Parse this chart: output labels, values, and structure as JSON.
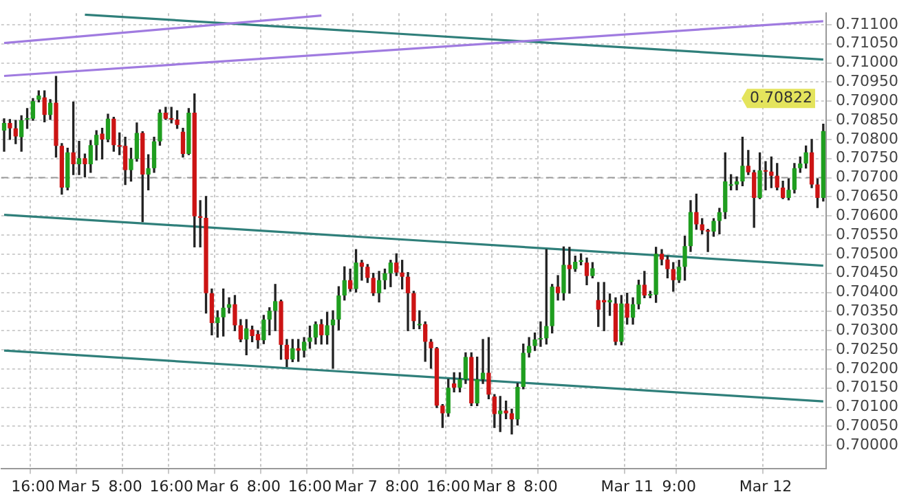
{
  "chart_data": {
    "type": "candlestick",
    "categories": [
      null,
      null,
      null,
      null,
      null,
      "16:00",
      null,
      null,
      null,
      null,
      null,
      null,
      null,
      "Mar 5",
      null,
      null,
      null,
      null,
      null,
      null,
      null,
      "8:00",
      null,
      null,
      null,
      null,
      null,
      null,
      null,
      "16:00",
      null,
      null,
      null,
      null,
      null,
      null,
      null,
      "Mar 6",
      null,
      null,
      null,
      null,
      null,
      null,
      null,
      "8:00",
      null,
      null,
      null,
      null,
      null,
      null,
      null,
      "16:00",
      null,
      null,
      null,
      null,
      null,
      null,
      null,
      "Mar 7",
      null,
      null,
      null,
      null,
      null,
      null,
      null,
      "8:00",
      null,
      null,
      null,
      null,
      null,
      null,
      null,
      "16:00",
      null,
      null,
      null,
      null,
      null,
      null,
      null,
      "Mar 8",
      null,
      null,
      null,
      null,
      null,
      null,
      null,
      "8:00",
      null,
      null,
      null,
      null,
      null,
      null,
      null,
      null,
      null,
      null,
      null,
      null,
      null,
      null,
      "Mar 11",
      null,
      null,
      null,
      null,
      null,
      null,
      null,
      null,
      "9:00",
      null,
      null,
      null,
      null,
      null,
      null,
      null,
      null,
      null,
      null,
      null,
      null,
      null,
      null,
      "Mar 12",
      null,
      null,
      null,
      null,
      null,
      null,
      null,
      null,
      null,
      null
    ],
    "ohlc": [
      [
        0.70823,
        0.70854,
        0.70769,
        0.70843
      ],
      [
        0.70843,
        0.70852,
        0.708,
        0.70829
      ],
      [
        0.70829,
        0.7085,
        0.70789,
        0.70808
      ],
      [
        0.70806,
        0.70862,
        0.70769,
        0.7085
      ],
      [
        0.70852,
        0.70881,
        0.70829,
        0.70854
      ],
      [
        0.70854,
        0.70907,
        0.7085,
        0.709
      ],
      [
        0.70904,
        0.70927,
        0.70898,
        0.70915
      ],
      [
        0.7091,
        0.70927,
        0.70846,
        0.70864
      ],
      [
        0.70864,
        0.70904,
        0.70852,
        0.70896
      ],
      [
        0.70896,
        0.70965,
        0.70754,
        0.70783
      ],
      [
        0.70783,
        0.70789,
        0.70657,
        0.70674
      ],
      [
        0.70674,
        0.70777,
        0.70668,
        0.70766
      ],
      [
        0.70766,
        0.70898,
        0.70708,
        0.70735
      ],
      [
        0.70735,
        0.70795,
        0.70708,
        0.70751
      ],
      [
        0.70751,
        0.70762,
        0.70702,
        0.70735
      ],
      [
        0.70735,
        0.70797,
        0.70714,
        0.70785
      ],
      [
        0.70785,
        0.70823,
        0.70746,
        0.70812
      ],
      [
        0.70815,
        0.70829,
        0.70749,
        0.708
      ],
      [
        0.708,
        0.70866,
        0.70794,
        0.70854
      ],
      [
        0.70854,
        0.70858,
        0.70769,
        0.70785
      ],
      [
        0.70785,
        0.70817,
        0.7076,
        0.70781
      ],
      [
        0.70783,
        0.70806,
        0.70682,
        0.7072
      ],
      [
        0.7072,
        0.70777,
        0.70691,
        0.70749
      ],
      [
        0.70749,
        0.70843,
        0.70743,
        0.70817
      ],
      [
        0.70817,
        0.7082,
        0.70585,
        0.70708
      ],
      [
        0.70708,
        0.7076,
        0.70668,
        0.70725
      ],
      [
        0.70725,
        0.70806,
        0.70714,
        0.70795
      ],
      [
        0.70795,
        0.70877,
        0.70785,
        0.7087
      ],
      [
        0.7087,
        0.70884,
        0.70852,
        0.70854
      ],
      [
        0.70854,
        0.70884,
        0.70843,
        0.70852
      ],
      [
        0.70852,
        0.70875,
        0.70829,
        0.70838
      ],
      [
        0.7082,
        0.70829,
        0.70754,
        0.70762
      ],
      [
        0.70762,
        0.70881,
        0.7076,
        0.7087
      ],
      [
        0.7087,
        0.70919,
        0.70519,
        0.70599
      ],
      [
        0.70599,
        0.7064,
        0.70519,
        0.70595
      ],
      [
        0.70595,
        0.70651,
        0.70346,
        0.70398
      ],
      [
        0.70398,
        0.70409,
        0.70289,
        0.7032
      ],
      [
        0.7032,
        0.70352,
        0.70283,
        0.70335
      ],
      [
        0.70335,
        0.70409,
        0.70286,
        0.7036
      ],
      [
        0.7036,
        0.70386,
        0.70346,
        0.70369
      ],
      [
        0.70369,
        0.70392,
        0.703,
        0.70314
      ],
      [
        0.70314,
        0.70329,
        0.70271,
        0.70277
      ],
      [
        0.70277,
        0.70329,
        0.70237,
        0.70306
      ],
      [
        0.70303,
        0.70312,
        0.70271,
        0.70286
      ],
      [
        0.70291,
        0.703,
        0.70254,
        0.70275
      ],
      [
        0.70275,
        0.7034,
        0.70266,
        0.70329
      ],
      [
        0.70329,
        0.7036,
        0.70289,
        0.70352
      ],
      [
        0.70352,
        0.70421,
        0.703,
        0.70377
      ],
      [
        0.70377,
        0.7038,
        0.70225,
        0.70263
      ],
      [
        0.70263,
        0.70277,
        0.70206,
        0.70225
      ],
      [
        0.70225,
        0.70277,
        0.70219,
        0.70254
      ],
      [
        0.70254,
        0.70277,
        0.7022,
        0.70248
      ],
      [
        0.70248,
        0.70282,
        0.70231,
        0.70271
      ],
      [
        0.70271,
        0.70312,
        0.70254,
        0.70282
      ],
      [
        0.70282,
        0.70323,
        0.70265,
        0.70317
      ],
      [
        0.70317,
        0.70329,
        0.70265,
        0.70288
      ],
      [
        0.70288,
        0.70348,
        0.70265,
        0.70314
      ],
      [
        0.70314,
        0.70352,
        0.70202,
        0.70329
      ],
      [
        0.70329,
        0.70415,
        0.70302,
        0.70392
      ],
      [
        0.70392,
        0.70467,
        0.7038,
        0.70432
      ],
      [
        0.70432,
        0.70461,
        0.70403,
        0.70409
      ],
      [
        0.70409,
        0.70512,
        0.70401,
        0.70478
      ],
      [
        0.70478,
        0.70484,
        0.70432,
        0.70467
      ],
      [
        0.70467,
        0.70473,
        0.70426,
        0.70438
      ],
      [
        0.70438,
        0.7045,
        0.70392,
        0.70398
      ],
      [
        0.70398,
        0.70455,
        0.70375,
        0.70432
      ],
      [
        0.70432,
        0.70461,
        0.70409,
        0.7045
      ],
      [
        0.7045,
        0.70484,
        0.70415,
        0.70478
      ],
      [
        0.70478,
        0.70501,
        0.70444,
        0.70452
      ],
      [
        0.70452,
        0.70484,
        0.70409,
        0.70441
      ],
      [
        0.70441,
        0.70452,
        0.703,
        0.70398
      ],
      [
        0.70398,
        0.70403,
        0.70305,
        0.70325
      ],
      [
        0.70314,
        0.70352,
        0.70305,
        0.70317
      ],
      [
        0.70317,
        0.70323,
        0.7022,
        0.70271
      ],
      [
        0.70271,
        0.70277,
        0.70202,
        0.70254
      ],
      [
        0.70254,
        0.70256,
        0.70099,
        0.70104
      ],
      [
        0.70104,
        0.70107,
        0.70047,
        0.70084
      ],
      [
        0.70084,
        0.70173,
        0.70076,
        0.70151
      ],
      [
        0.70162,
        0.7019,
        0.7014,
        0.70151
      ],
      [
        0.70151,
        0.7019,
        0.7014,
        0.70173
      ],
      [
        0.70173,
        0.70242,
        0.70162,
        0.70231
      ],
      [
        0.70231,
        0.70242,
        0.70104,
        0.7011
      ],
      [
        0.7011,
        0.70231,
        0.70104,
        0.70173
      ],
      [
        0.70173,
        0.70277,
        0.70162,
        0.7019
      ],
      [
        0.7019,
        0.70282,
        0.70122,
        0.70133
      ],
      [
        0.70128,
        0.70133,
        0.70047,
        0.70082
      ],
      [
        0.70082,
        0.70128,
        0.70036,
        0.70091
      ],
      [
        0.70091,
        0.70116,
        0.7007,
        0.70084
      ],
      [
        0.70084,
        0.70095,
        0.7003,
        0.70068
      ],
      [
        0.70068,
        0.70162,
        0.70053,
        0.70153
      ],
      [
        0.70153,
        0.70265,
        0.70148,
        0.70242
      ],
      [
        0.70242,
        0.70282,
        0.70231,
        0.7026
      ],
      [
        0.7026,
        0.70294,
        0.70248,
        0.70277
      ],
      [
        0.70277,
        0.70323,
        0.70259,
        0.7028
      ],
      [
        0.7028,
        0.70512,
        0.70265,
        0.70312
      ],
      [
        0.70312,
        0.70421,
        0.70294,
        0.70415
      ],
      [
        0.70415,
        0.70444,
        0.7038,
        0.70398
      ],
      [
        0.70398,
        0.70519,
        0.7038,
        0.70472
      ],
      [
        0.70472,
        0.70518,
        0.70398,
        0.70461
      ],
      [
        0.70461,
        0.70495,
        0.70455,
        0.7048
      ],
      [
        0.7048,
        0.70501,
        0.70472,
        0.70484
      ],
      [
        0.70478,
        0.7049,
        0.7042,
        0.70443
      ],
      [
        0.70443,
        0.70478,
        0.70438,
        0.70463
      ],
      [
        0.7038,
        0.70426,
        0.70311,
        0.70355
      ],
      [
        0.7038,
        0.70426,
        0.703,
        0.70374
      ],
      [
        0.70374,
        0.70396,
        0.7034,
        0.7038
      ],
      [
        0.70371,
        0.70386,
        0.70263,
        0.70271
      ],
      [
        0.70271,
        0.70392,
        0.70263,
        0.70371
      ],
      [
        0.70371,
        0.70398,
        0.70317,
        0.70334
      ],
      [
        0.70334,
        0.70386,
        0.70317,
        0.70369
      ],
      [
        0.70369,
        0.70432,
        0.70357,
        0.7042
      ],
      [
        0.7042,
        0.70455,
        0.70386,
        0.70392
      ],
      [
        0.70392,
        0.70403,
        0.70386,
        0.70394
      ],
      [
        0.70394,
        0.70518,
        0.70374,
        0.70501
      ],
      [
        0.70501,
        0.70512,
        0.70472,
        0.70486
      ],
      [
        0.70486,
        0.70495,
        0.70438,
        0.70461
      ],
      [
        0.70461,
        0.70478,
        0.70403,
        0.70432
      ],
      [
        0.70432,
        0.70484,
        0.70426,
        0.70467
      ],
      [
        0.70467,
        0.70547,
        0.70432,
        0.70521
      ],
      [
        0.70521,
        0.7064,
        0.70507,
        0.7061
      ],
      [
        0.7061,
        0.70657,
        0.70565,
        0.70578
      ],
      [
        0.70578,
        0.70593,
        0.70553,
        0.70562
      ],
      [
        0.70562,
        0.70565,
        0.70507,
        0.70559
      ],
      [
        0.70559,
        0.70593,
        0.70547,
        0.70587
      ],
      [
        0.70587,
        0.7062,
        0.70553,
        0.7061
      ],
      [
        0.7061,
        0.70765,
        0.70593,
        0.7069
      ],
      [
        0.70679,
        0.70708,
        0.70668,
        0.70682
      ],
      [
        0.70682,
        0.70702,
        0.70668,
        0.7069
      ],
      [
        0.7069,
        0.70806,
        0.70679,
        0.70731
      ],
      [
        0.70731,
        0.70771,
        0.70708,
        0.70714
      ],
      [
        0.70714,
        0.70719,
        0.7057,
        0.70647
      ],
      [
        0.70647,
        0.70765,
        0.70645,
        0.70719
      ],
      [
        0.70719,
        0.70742,
        0.70668,
        0.70716
      ],
      [
        0.70716,
        0.70754,
        0.70674,
        0.70705
      ],
      [
        0.70705,
        0.70737,
        0.70668,
        0.70674
      ],
      [
        0.70674,
        0.70691,
        0.70645,
        0.70647
      ],
      [
        0.70647,
        0.70697,
        0.70642,
        0.70668
      ],
      [
        0.70668,
        0.70737,
        0.7066,
        0.70725
      ],
      [
        0.70725,
        0.70754,
        0.70714,
        0.70737
      ],
      [
        0.70737,
        0.70783,
        0.70725,
        0.70766
      ],
      [
        0.70766,
        0.708,
        0.70674,
        0.70682
      ],
      [
        0.70682,
        0.70697,
        0.70622,
        0.70647
      ],
      [
        0.70647,
        0.7084,
        0.70639,
        0.70822
      ]
    ],
    "colors": [
      "#1f9e1f",
      "#cc1414",
      "#cc1414",
      "#1f9e1f",
      "#1f9e1f",
      "#1f9e1f",
      "#1f9e1f",
      "#cc1414",
      "#1f9e1f",
      "#cc1414",
      "#cc1414",
      "#1f9e1f",
      "#cc1414",
      "#1f9e1f",
      "#cc1414",
      "#1f9e1f",
      "#1f9e1f",
      "#cc1414",
      "#1f9e1f",
      "#cc1414",
      "#cc1414",
      "#cc1414",
      "#1f9e1f",
      "#1f9e1f",
      "#cc1414",
      "#1f9e1f",
      "#1f9e1f",
      "#1f9e1f",
      "#cc1414",
      "#cc1414",
      "#cc1414",
      "#cc1414",
      "#1f9e1f",
      "#cc1414",
      "#cc1414",
      "#cc1414",
      "#cc1414",
      "#1f9e1f",
      "#1f9e1f",
      "#1f9e1f",
      "#cc1414",
      "#cc1414",
      "#1f9e1f",
      "#cc1414",
      "#cc1414",
      "#1f9e1f",
      "#1f9e1f",
      "#1f9e1f",
      "#cc1414",
      "#cc1414",
      "#1f9e1f",
      "#cc1414",
      "#1f9e1f",
      "#1f9e1f",
      "#1f9e1f",
      "#cc1414",
      "#1f9e1f",
      "#1f9e1f",
      "#1f9e1f",
      "#1f9e1f",
      "#cc1414",
      "#1f9e1f",
      "#cc1414",
      "#cc1414",
      "#cc1414",
      "#1f9e1f",
      "#1f9e1f",
      "#1f9e1f",
      "#cc1414",
      "#cc1414",
      "#cc1414",
      "#cc1414",
      "#1f9e1f",
      "#cc1414",
      "#cc1414",
      "#cc1414",
      "#cc1414",
      "#1f9e1f",
      "#cc1414",
      "#1f9e1f",
      "#1f9e1f",
      "#cc1414",
      "#1f9e1f",
      "#1f9e1f",
      "#cc1414",
      "#cc1414",
      "#1f9e1f",
      "#cc1414",
      "#cc1414",
      "#1f9e1f",
      "#1f9e1f",
      "#1f9e1f",
      "#1f9e1f",
      "#1f9e1f",
      "#1f9e1f",
      "#1f9e1f",
      "#cc1414",
      "#1f9e1f",
      "#cc1414",
      "#1f9e1f",
      "#1f9e1f",
      "#cc1414",
      "#1f9e1f",
      "#cc1414",
      "#cc1414",
      "#1f9e1f",
      "#cc1414",
      "#1f9e1f",
      "#cc1414",
      "#1f9e1f",
      "#1f9e1f",
      "#cc1414",
      "#1f9e1f",
      "#1f9e1f",
      "#cc1414",
      "#cc1414",
      "#cc1414",
      "#1f9e1f",
      "#1f9e1f",
      "#1f9e1f",
      "#cc1414",
      "#cc1414",
      "#cc1414",
      "#1f9e1f",
      "#1f9e1f",
      "#1f9e1f",
      "#1f9e1f",
      "#1f9e1f",
      "#1f9e1f",
      "#cc1414",
      "#cc1414",
      "#1f9e1f",
      "#cc1414",
      "#cc1414",
      "#cc1414",
      "#cc1414",
      "#1f9e1f",
      "#1f9e1f",
      "#1f9e1f",
      "#1f9e1f",
      "#cc1414",
      "#cc1414",
      "#1f9e1f"
    ],
    "series": [
      {
        "type": "line",
        "color": "#a07be0",
        "values": [
          0.70966,
          null,
          null,
          null,
          null,
          null,
          null,
          null,
          null,
          null,
          null,
          null,
          null,
          null,
          null,
          null,
          null,
          null,
          null,
          null,
          null,
          null,
          null,
          null,
          null,
          null,
          null,
          null,
          null,
          null,
          null,
          null,
          null,
          null,
          null,
          null,
          null,
          null,
          null,
          null,
          null,
          null,
          null,
          null,
          null,
          null,
          null,
          null,
          null,
          null,
          null,
          null,
          null,
          null,
          null,
          null,
          null,
          null,
          null,
          null,
          null,
          null,
          null,
          null,
          null,
          null,
          null,
          null,
          null,
          null,
          null,
          null,
          null,
          null,
          null,
          null,
          null,
          null,
          null,
          null,
          null,
          null,
          null,
          null,
          null,
          null,
          null,
          null,
          null,
          null,
          null,
          null,
          null,
          null,
          null,
          null,
          null,
          null,
          null,
          null,
          null,
          null,
          null,
          null,
          null,
          null,
          null,
          null,
          null,
          null,
          null,
          null,
          null,
          null,
          null,
          null,
          null,
          null,
          null,
          null,
          null,
          null,
          null,
          null,
          null,
          null,
          null,
          null,
          null,
          null,
          null,
          null,
          null,
          null,
          null,
          null,
          null,
          null,
          null,
          null,
          null,
          null,
          0.71109
        ]
      },
      {
        "type": "line",
        "color": "#a07be0",
        "values": [
          0.71052,
          null,
          null,
          null,
          null,
          null,
          null,
          null,
          null,
          null,
          null,
          null,
          null,
          null,
          null,
          null,
          null,
          null,
          null,
          null,
          null,
          null,
          null,
          null,
          null,
          null,
          null,
          null,
          null,
          null,
          null,
          null,
          null,
          null,
          null,
          null,
          null,
          null,
          null,
          null,
          null,
          null,
          null,
          null,
          null,
          null,
          null,
          null,
          null,
          null,
          null,
          null,
          null,
          null,
          null,
          0.71124,
          null,
          null,
          null,
          null,
          null,
          null,
          null,
          null,
          null,
          null,
          null,
          null,
          null,
          null,
          null,
          null,
          null,
          null,
          null,
          null,
          null,
          null,
          null,
          null,
          null,
          null,
          null,
          null,
          null,
          null,
          null,
          null,
          null,
          null,
          null,
          null,
          null,
          null,
          null,
          null,
          null,
          null,
          null,
          null,
          null,
          null,
          null,
          null,
          null,
          null,
          null,
          null,
          null,
          null,
          null,
          null,
          null,
          null,
          null,
          null,
          null,
          null,
          null,
          null,
          null,
          null,
          null,
          null,
          null,
          null,
          null,
          null,
          null,
          null,
          null,
          null,
          null,
          null,
          null,
          null,
          null,
          null,
          null,
          null,
          null,
          null,
          null
        ]
      },
      {
        "type": "line",
        "color": "#2f7f7a",
        "values": [
          null,
          null,
          null,
          null,
          null,
          null,
          null,
          null,
          null,
          null,
          null,
          null,
          null,
          null,
          0.71126,
          null,
          null,
          null,
          null,
          null,
          null,
          null,
          null,
          null,
          null,
          null,
          null,
          null,
          null,
          null,
          null,
          null,
          null,
          null,
          null,
          null,
          null,
          null,
          null,
          null,
          null,
          null,
          null,
          null,
          null,
          null,
          null,
          null,
          null,
          null,
          null,
          null,
          null,
          null,
          null,
          null,
          null,
          null,
          null,
          null,
          null,
          null,
          null,
          null,
          null,
          null,
          null,
          null,
          null,
          null,
          null,
          null,
          null,
          null,
          null,
          null,
          null,
          null,
          null,
          null,
          null,
          null,
          null,
          null,
          null,
          null,
          null,
          null,
          null,
          null,
          null,
          null,
          null,
          null,
          null,
          null,
          null,
          null,
          null,
          null,
          null,
          null,
          null,
          null,
          null,
          null,
          null,
          null,
          null,
          null,
          null,
          null,
          null,
          null,
          null,
          null,
          null,
          null,
          null,
          null,
          null,
          null,
          null,
          null,
          null,
          null,
          null,
          null,
          null,
          null,
          null,
          null,
          null,
          null,
          null,
          null,
          null,
          null,
          null,
          null,
          null,
          null,
          0.71009
        ]
      },
      {
        "type": "line",
        "color": "#2f7f7a",
        "values": [
          0.70603,
          null,
          null,
          null,
          null,
          null,
          null,
          null,
          null,
          null,
          null,
          null,
          null,
          null,
          null,
          null,
          null,
          null,
          null,
          null,
          null,
          null,
          null,
          null,
          null,
          null,
          null,
          null,
          null,
          null,
          null,
          null,
          null,
          null,
          null,
          null,
          null,
          null,
          null,
          null,
          null,
          null,
          null,
          null,
          null,
          null,
          null,
          null,
          null,
          null,
          null,
          null,
          null,
          null,
          null,
          null,
          null,
          null,
          null,
          null,
          null,
          null,
          null,
          null,
          null,
          null,
          null,
          null,
          null,
          null,
          null,
          null,
          null,
          null,
          null,
          null,
          null,
          null,
          null,
          null,
          null,
          null,
          null,
          null,
          null,
          null,
          null,
          null,
          null,
          null,
          null,
          null,
          null,
          null,
          null,
          null,
          null,
          null,
          null,
          null,
          null,
          null,
          null,
          null,
          null,
          null,
          null,
          null,
          null,
          null,
          null,
          null,
          null,
          null,
          null,
          null,
          null,
          null,
          null,
          null,
          null,
          null,
          null,
          null,
          null,
          null,
          null,
          null,
          null,
          null,
          null,
          null,
          null,
          null,
          null,
          null,
          null,
          null,
          null,
          null,
          null,
          null,
          0.7047
        ]
      },
      {
        "type": "line",
        "color": "#2f7f7a",
        "values": [
          0.70248,
          null,
          null,
          null,
          null,
          null,
          null,
          null,
          null,
          null,
          null,
          null,
          null,
          null,
          null,
          null,
          null,
          null,
          null,
          null,
          null,
          null,
          null,
          null,
          null,
          null,
          null,
          null,
          null,
          null,
          null,
          null,
          null,
          null,
          null,
          null,
          null,
          null,
          null,
          null,
          null,
          null,
          null,
          null,
          null,
          null,
          null,
          null,
          null,
          null,
          null,
          null,
          null,
          null,
          null,
          null,
          null,
          null,
          null,
          null,
          null,
          null,
          null,
          null,
          null,
          null,
          null,
          null,
          null,
          null,
          null,
          null,
          null,
          null,
          null,
          null,
          null,
          null,
          null,
          null,
          null,
          null,
          null,
          null,
          null,
          null,
          null,
          null,
          null,
          null,
          null,
          null,
          null,
          null,
          null,
          null,
          null,
          null,
          null,
          null,
          null,
          null,
          null,
          null,
          null,
          null,
          null,
          null,
          null,
          null,
          null,
          null,
          null,
          null,
          null,
          null,
          null,
          null,
          null,
          null,
          null,
          null,
          null,
          null,
          null,
          null,
          null,
          null,
          null,
          null,
          null,
          null,
          null,
          null,
          null,
          null,
          null,
          null,
          null,
          null,
          null,
          null,
          0.70115
        ]
      }
    ],
    "ylim": [
      0.6994,
      0.7113
    ],
    "yticks": [
      {
        "value": 0.7,
        "label": "0.70000"
      },
      {
        "value": 0.7005,
        "label": "0.70050"
      },
      {
        "value": 0.701,
        "label": "0.70100"
      },
      {
        "value": 0.7015,
        "label": "0.70150"
      },
      {
        "value": 0.702,
        "label": "0.70200"
      },
      {
        "value": 0.7025,
        "label": "0.70250"
      },
      {
        "value": 0.703,
        "label": "0.70300"
      },
      {
        "value": 0.7035,
        "label": "0.70350"
      },
      {
        "value": 0.704,
        "label": "0.70400"
      },
      {
        "value": 0.7045,
        "label": "0.70450"
      },
      {
        "value": 0.705,
        "label": "0.70500"
      },
      {
        "value": 0.7055,
        "label": "0.70550"
      },
      {
        "value": 0.706,
        "label": "0.70600"
      },
      {
        "value": 0.7065,
        "label": "0.70650"
      },
      {
        "value": 0.707,
        "label": "0.70700"
      },
      {
        "value": 0.7075,
        "label": "0.70750"
      },
      {
        "value": 0.708,
        "label": "0.70800"
      },
      {
        "value": 0.7085,
        "label": "0.70850"
      },
      {
        "value": 0.709,
        "label": "0.70900"
      },
      {
        "value": 0.7095,
        "label": "0.70950"
      },
      {
        "value": 0.71,
        "label": "0.71000"
      },
      {
        "value": 0.7105,
        "label": "0.71050"
      },
      {
        "value": 0.711,
        "label": "0.71100"
      }
    ],
    "ref_lines": [
      {
        "axis": "y",
        "value": 0.707,
        "color": "#9a9a9a",
        "line_style": "dashed"
      }
    ],
    "annotations": [
      "0.70822"
    ],
    "grid": true,
    "marker": "none"
  }
}
